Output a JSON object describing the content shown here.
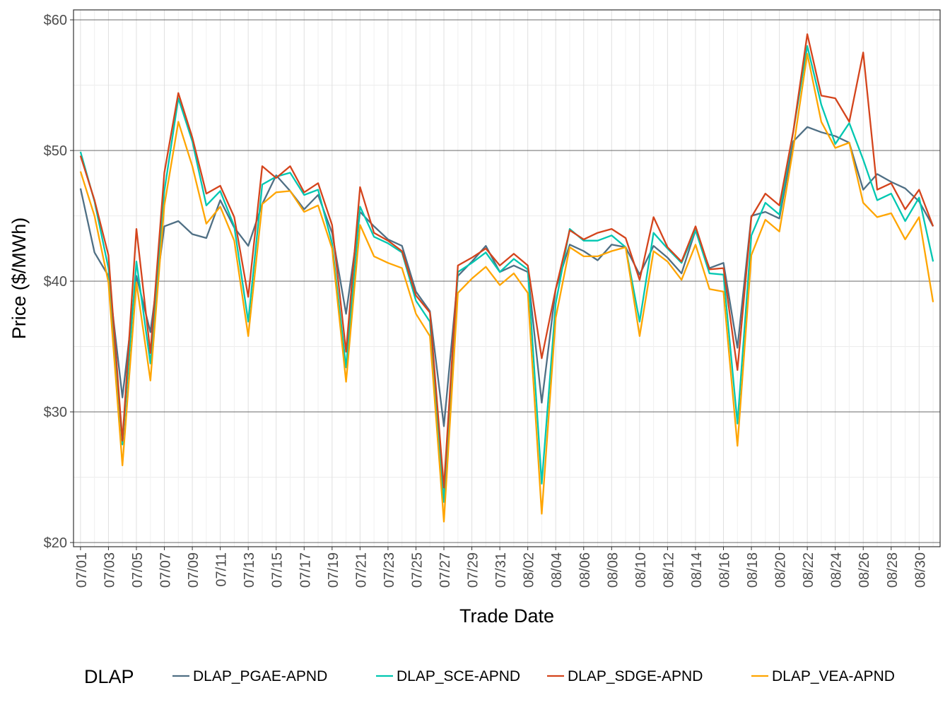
{
  "chart_data": {
    "type": "line",
    "title": "",
    "xlabel": "Trade Date",
    "ylabel": "Price ($/MWh)",
    "ylim": [
      20,
      60
    ],
    "yticks": [
      "$20",
      "$30",
      "$40",
      "$50",
      "$60"
    ],
    "ytick_values": [
      20,
      30,
      40,
      50,
      60
    ],
    "grid": true,
    "legend": {
      "title": "DLAP",
      "position": "bottom"
    },
    "x": [
      "07/01",
      "07/02",
      "07/03",
      "07/04",
      "07/05",
      "07/06",
      "07/07",
      "07/08",
      "07/09",
      "07/10",
      "07/11",
      "07/12",
      "07/13",
      "07/14",
      "07/15",
      "07/16",
      "07/17",
      "07/18",
      "07/19",
      "07/20",
      "07/21",
      "07/22",
      "07/23",
      "07/24",
      "07/25",
      "07/26",
      "07/27",
      "07/28",
      "07/29",
      "07/30",
      "07/31",
      "08/01",
      "08/02",
      "08/03",
      "08/04",
      "08/05",
      "08/06",
      "08/07",
      "08/08",
      "08/09",
      "08/10",
      "08/11",
      "08/12",
      "08/13",
      "08/14",
      "08/15",
      "08/16",
      "08/17",
      "08/18",
      "08/19",
      "08/20",
      "08/21",
      "08/22",
      "08/23",
      "08/24",
      "08/25",
      "08/26",
      "08/27",
      "08/28",
      "08/29",
      "08/30",
      "08/31"
    ],
    "xtick_every": 2,
    "series": [
      {
        "name": "DLAP_PGAE-APND",
        "color": "#4F6F84",
        "values": [
          47.1,
          42.2,
          40.4,
          31.1,
          40.4,
          36.1,
          44.2,
          44.6,
          43.6,
          43.3,
          46.2,
          44.1,
          42.7,
          45.9,
          48.1,
          46.9,
          45.5,
          46.6,
          43.7,
          37.5,
          45.3,
          44.2,
          43.2,
          42.7,
          39.2,
          37.7,
          28.9,
          40.4,
          41.5,
          42.7,
          40.7,
          41.2,
          40.7,
          30.7,
          39.4,
          42.8,
          42.3,
          41.6,
          42.8,
          42.6,
          40.5,
          42.7,
          41.8,
          40.6,
          43.9,
          41.0,
          41.4,
          34.9,
          45.0,
          45.3,
          44.8,
          50.7,
          51.8,
          51.4,
          51.1,
          50.6,
          47.0,
          48.2,
          47.6,
          47.1,
          46.1,
          44.2
        ]
      },
      {
        "name": "DLAP_SCE-APND",
        "color": "#00C7B1",
        "values": [
          49.9,
          46.1,
          41.0,
          27.5,
          41.5,
          33.7,
          46.9,
          54.0,
          50.7,
          45.8,
          46.9,
          44.2,
          36.9,
          47.4,
          48.0,
          48.3,
          46.6,
          47.0,
          42.9,
          33.4,
          45.7,
          43.4,
          42.9,
          42.2,
          38.5,
          36.9,
          23.1,
          40.7,
          41.4,
          42.2,
          40.7,
          41.7,
          40.9,
          24.5,
          38.3,
          44.0,
          43.1,
          43.1,
          43.5,
          42.6,
          36.9,
          43.7,
          42.5,
          41.4,
          43.9,
          40.6,
          40.5,
          29.1,
          43.5,
          46.0,
          45.1,
          51.5,
          58.0,
          53.5,
          50.5,
          52.1,
          49.3,
          46.2,
          46.7,
          44.6,
          46.4,
          41.5
        ]
      },
      {
        "name": "DLAP_SDGE-APND",
        "color": "#D4441C",
        "values": [
          49.6,
          46.2,
          42.0,
          27.8,
          44.0,
          34.5,
          48.3,
          54.4,
          51.0,
          46.7,
          47.3,
          44.9,
          38.8,
          48.8,
          47.9,
          48.8,
          46.8,
          47.5,
          44.3,
          34.6,
          47.2,
          43.7,
          43.1,
          42.3,
          38.9,
          37.6,
          24.2,
          41.2,
          41.8,
          42.5,
          41.2,
          42.1,
          41.2,
          34.1,
          39.4,
          43.9,
          43.2,
          43.7,
          44.0,
          43.3,
          40.1,
          44.9,
          42.6,
          41.5,
          44.2,
          40.9,
          41.0,
          33.2,
          44.9,
          46.7,
          45.8,
          51.5,
          58.9,
          54.2,
          54.0,
          52.2,
          57.5,
          47.0,
          47.5,
          45.5,
          47.0,
          44.2
        ]
      },
      {
        "name": "DLAP_VEA-APND",
        "color": "#FFA500",
        "values": [
          48.4,
          45.0,
          39.9,
          25.9,
          39.9,
          32.4,
          45.8,
          52.2,
          48.8,
          44.4,
          45.7,
          43.1,
          35.8,
          45.9,
          46.8,
          46.9,
          45.3,
          45.8,
          42.5,
          32.3,
          44.3,
          41.9,
          41.4,
          41.0,
          37.5,
          35.8,
          21.6,
          39.1,
          40.2,
          41.1,
          39.7,
          40.6,
          39.1,
          22.2,
          37.2,
          42.6,
          41.9,
          41.9,
          42.3,
          42.6,
          35.8,
          42.3,
          41.5,
          40.1,
          42.8,
          39.4,
          39.2,
          27.4,
          42.0,
          44.7,
          43.8,
          50.2,
          57.4,
          52.2,
          50.2,
          50.6,
          46.0,
          44.9,
          45.2,
          43.2,
          44.9,
          38.4
        ]
      }
    ]
  }
}
